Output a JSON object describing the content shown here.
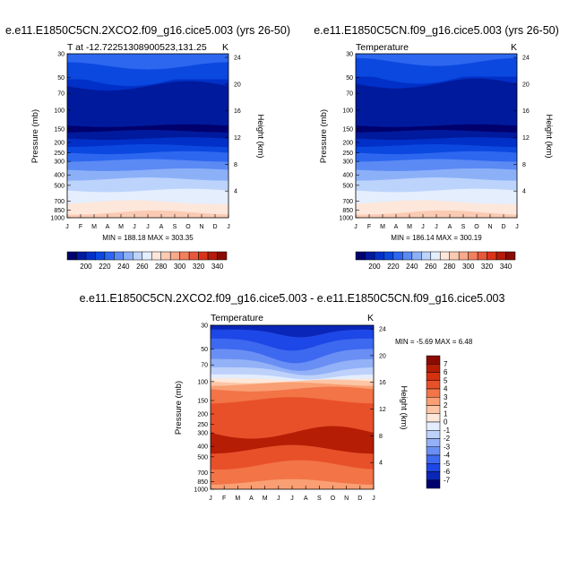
{
  "chart_data": [
    {
      "type": "heatmap",
      "title": "e.e11.E1850C5CN.2XCO2.f09_g16.cice5.003 (yrs 26-50)",
      "subtitle": "T at -12.72251308900523,131.25",
      "units": "K",
      "xlabel": "",
      "ylabel": "Pressure (mb)",
      "ylabel_right": "Height (km)",
      "x_ticks": [
        "J",
        "F",
        "M",
        "A",
        "M",
        "J",
        "J",
        "A",
        "S",
        "O",
        "N",
        "D",
        "J"
      ],
      "y_ticks": [
        "30",
        "50",
        "70",
        "100",
        "150",
        "200",
        "250",
        "300",
        "400",
        "500",
        "700",
        "850",
        "1000"
      ],
      "y_right_ticks": [
        "24",
        "20",
        "16",
        "12",
        "8",
        "4"
      ],
      "stats": "MIN = 188.18 MAX = 303.35",
      "min": 188.18,
      "max": 303.35,
      "colorbar_labels": [
        "200",
        "220",
        "240",
        "260",
        "280",
        "300",
        "320",
        "340"
      ],
      "colorbar_levels": [
        190,
        200,
        210,
        220,
        230,
        240,
        250,
        260,
        270,
        280,
        290,
        300,
        310,
        320,
        330,
        340,
        350
      ]
    },
    {
      "type": "heatmap",
      "title": "e.e11.E1850C5CN.f09_g16.cice5.003 (yrs 26-50)",
      "subtitle": "Temperature",
      "units": "K",
      "xlabel": "",
      "ylabel": "Pressure (mb)",
      "ylabel_right": "Height (km)",
      "x_ticks": [
        "J",
        "F",
        "M",
        "A",
        "M",
        "J",
        "J",
        "A",
        "S",
        "O",
        "N",
        "D",
        "J"
      ],
      "y_ticks": [
        "30",
        "50",
        "70",
        "100",
        "150",
        "200",
        "250",
        "300",
        "400",
        "500",
        "700",
        "850",
        "1000"
      ],
      "y_right_ticks": [
        "24",
        "20",
        "16",
        "12",
        "8",
        "4"
      ],
      "stats": "MIN = 186.14 MAX = 300.19",
      "min": 186.14,
      "max": 300.19,
      "colorbar_labels": [
        "200",
        "220",
        "240",
        "260",
        "280",
        "300",
        "320",
        "340"
      ],
      "colorbar_levels": [
        190,
        200,
        210,
        220,
        230,
        240,
        250,
        260,
        270,
        280,
        290,
        300,
        310,
        320,
        330,
        340,
        350
      ]
    },
    {
      "type": "heatmap",
      "title": "e.e11.E1850C5CN.2XCO2.f09_g16.cice5.003 - e.e11.E1850C5CN.f09_g16.cice5.003",
      "subtitle": "Temperature",
      "units": "K",
      "xlabel": "",
      "ylabel": "Pressure (mb)",
      "ylabel_right": "Height (km)",
      "x_ticks": [
        "J",
        "F",
        "M",
        "A",
        "M",
        "J",
        "J",
        "A",
        "S",
        "O",
        "N",
        "D",
        "J"
      ],
      "y_ticks": [
        "30",
        "50",
        "70",
        "100",
        "150",
        "200",
        "250",
        "300",
        "400",
        "500",
        "700",
        "850",
        "1000"
      ],
      "y_right_ticks": [
        "24",
        "20",
        "16",
        "12",
        "8",
        "4"
      ],
      "stats": "MIN =  -5.69 MAX =   6.48",
      "min": -5.69,
      "max": 6.48,
      "colorbar_labels": [
        "7",
        "6",
        "5",
        "4",
        "3",
        "2",
        "1",
        "0",
        "-1",
        "-2",
        "-3",
        "-4",
        "-5",
        "-6",
        "-7"
      ],
      "colorbar_levels": [
        -7,
        -6,
        -5,
        -4,
        -3,
        -2,
        -1,
        0,
        1,
        2,
        3,
        4,
        5,
        6,
        7
      ]
    }
  ],
  "palettes": {
    "abs": [
      "#00006e",
      "#001a9e",
      "#0030c8",
      "#0a48e0",
      "#2d67ef",
      "#5b8af5",
      "#8cb0f8",
      "#bcd3fb",
      "#e4eefd",
      "#fde6da",
      "#fbcab3",
      "#f7a98a",
      "#f2805e",
      "#e8573a",
      "#d93418",
      "#b51a0a",
      "#8a0a04"
    ],
    "diff": [
      "#00006e",
      "#0a26b8",
      "#1d47e6",
      "#3d68f0",
      "#6a8ff4",
      "#93b1f7",
      "#bdd1fa",
      "#e3edfd",
      "#fde7d8",
      "#fcc5a5",
      "#f99f73",
      "#f27447",
      "#e8502a",
      "#d5310f",
      "#b51d05",
      "#8b0b02"
    ]
  }
}
